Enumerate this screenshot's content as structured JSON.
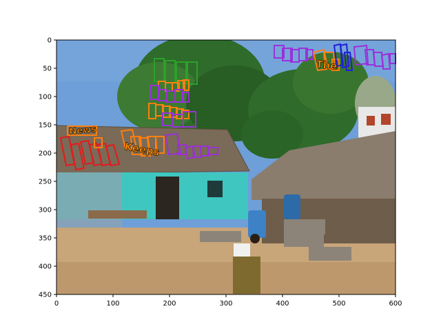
{
  "figure": {
    "x_ticks": [
      "0",
      "100",
      "200",
      "300",
      "400",
      "500",
      "600"
    ],
    "y_ticks": [
      "0",
      "50",
      "100",
      "150",
      "200",
      "250",
      "300",
      "350",
      "400",
      "450"
    ],
    "xlim": [
      0,
      600
    ],
    "ylim": [
      450,
      0
    ]
  },
  "annotated_words": [
    {
      "text": "News",
      "color": "#ff8c00"
    },
    {
      "text": "Keeps",
      "color": "#ff8c00"
    },
    {
      "text": "The",
      "color": "#ff8c00"
    }
  ],
  "box_colors": {
    "green": "#2ca02c",
    "orange": "#ff7f0e",
    "purple": "#9b30d9",
    "red": "#e31a1c",
    "blue": "#1f1fd6"
  },
  "scene": {
    "sky": "#6e9fd8",
    "ground": "#c9a57a",
    "tree": "#2f6b2a",
    "thatch": "#7a6a58",
    "wall": "#3fc6c0"
  }
}
